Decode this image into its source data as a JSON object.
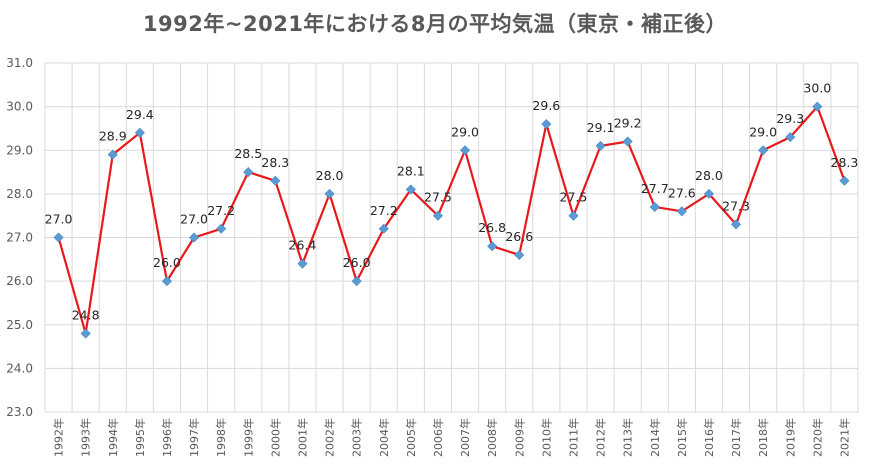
{
  "chart_data": {
    "type": "line",
    "title": "1992年~2021年における8月の平均気温（東京・補正後）",
    "xlabel": "",
    "ylabel": "",
    "ylim": [
      23.0,
      31.0
    ],
    "yticks": [
      "23.0",
      "24.0",
      "25.0",
      "26.0",
      "27.0",
      "28.0",
      "29.0",
      "30.0",
      "31.0"
    ],
    "categories": [
      "1992年",
      "1993年",
      "1994年",
      "1995年",
      "1996年",
      "1997年",
      "1998年",
      "1999年",
      "2000年",
      "2001年",
      "2002年",
      "2003年",
      "2004年",
      "2005年",
      "2006年",
      "2007年",
      "2008年",
      "2009年",
      "2010年",
      "2011年",
      "2012年",
      "2013年",
      "2014年",
      "2015年",
      "2016年",
      "2017年",
      "2018年",
      "2019年",
      "2020年",
      "2021年"
    ],
    "series": [
      {
        "name": "8月の平均気温",
        "values": [
          27.0,
          24.8,
          28.9,
          29.4,
          26.0,
          27.0,
          27.2,
          28.5,
          28.3,
          26.4,
          28.0,
          26.0,
          27.2,
          28.1,
          27.5,
          29.0,
          26.8,
          26.6,
          29.6,
          27.5,
          29.1,
          29.2,
          27.7,
          27.6,
          28.0,
          27.3,
          29.0,
          29.3,
          30.0,
          28.3
        ],
        "labels": [
          "27.0",
          "24.8",
          "28.9",
          "29.4",
          "26.0",
          "27.0",
          "27.2",
          "28.5",
          "28.3",
          "26.4",
          "28.0",
          "26.0",
          "27.2",
          "28.1",
          "27.5",
          "29.0",
          "26.8",
          "26.6",
          "29.6",
          "27.5",
          "29.1",
          "29.2",
          "27.7",
          "27.6",
          "28.0",
          "27.3",
          "29.0",
          "29.3",
          "30.0",
          "28.3"
        ]
      }
    ],
    "colors": {
      "line": "#e8191b",
      "marker": "#5b9bd5",
      "grid": "#d9d9d9",
      "axis_text": "#595959"
    },
    "grid": true,
    "legend": "none"
  }
}
